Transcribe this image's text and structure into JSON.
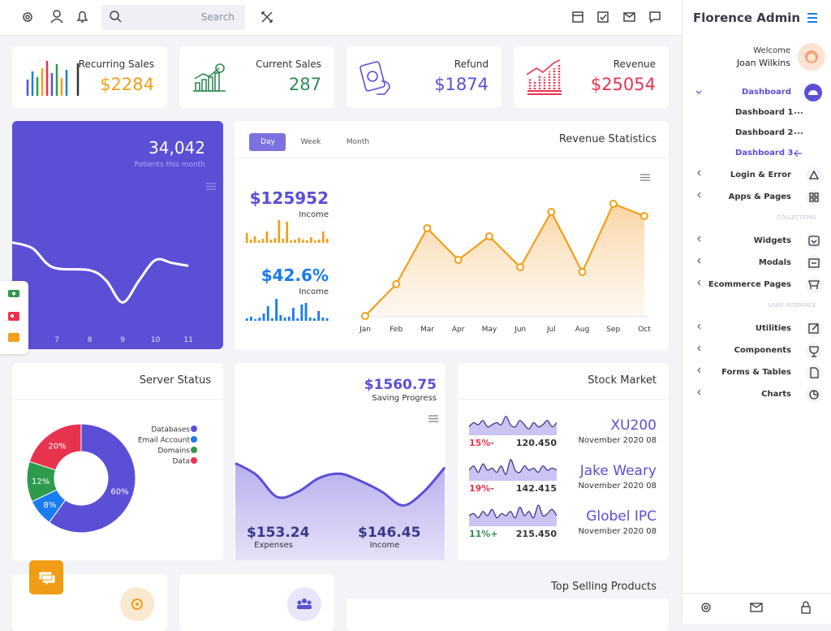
{
  "topbar": {
    "search_placeholder": "Search"
  },
  "stats": [
    {
      "label": "Recurring Sales",
      "value": "$2284",
      "color": "#f0a01a"
    },
    {
      "label": "Current Sales",
      "value": "287",
      "color": "#2e8b57"
    },
    {
      "label": "Refund",
      "value": "$1874",
      "color": "#5b4fd6"
    },
    {
      "label": "Revenue",
      "value": "$25054",
      "color": "#e8334e"
    }
  ],
  "patients": {
    "type": "line",
    "value": "34,042",
    "caption": "Patients this month",
    "color": "#ffffff",
    "x": [
      5.64,
      6.26,
      6.88,
      8,
      8.5,
      9,
      9.5,
      10,
      10.5,
      11
    ],
    "values": [
      73,
      69,
      56,
      54,
      47,
      32,
      47,
      61,
      59,
      57
    ],
    "xlim": [
      5.64,
      12.06
    ],
    "ylim": [
      0,
      100
    ],
    "xticks": [
      7,
      8,
      9,
      10,
      11
    ]
  },
  "revenue": {
    "tabs": [
      "Day",
      "Week",
      "Month"
    ],
    "title": "Revenue Statistics",
    "income_charts": [
      {
        "type": "bar",
        "value": "$125952",
        "caption": "Income",
        "color": "#f0a01a",
        "value_color": "#5b4fd6",
        "ylim": [
          0,
          30
        ],
        "values": [
          12,
          4,
          8,
          3,
          5,
          14,
          4,
          6,
          28,
          5,
          26,
          3,
          4,
          6,
          4,
          3,
          7,
          3,
          4,
          14,
          5
        ]
      },
      {
        "type": "bar",
        "value": "$42.6%",
        "caption": "Income",
        "color": "#1a7cf0",
        "value_color": "#1a7cf0",
        "ylim": [
          0,
          30
        ],
        "values": [
          3,
          5,
          2,
          4,
          9,
          18,
          3,
          27,
          7,
          4,
          5,
          16,
          3,
          20,
          22,
          4,
          3,
          12,
          4,
          3
        ]
      }
    ],
    "chart": {
      "type": "line",
      "color": "#f0a01a",
      "categories": [
        "Jan",
        "Feb",
        "Mar",
        "Apr",
        "May",
        "Jun",
        "Jul",
        "Aug",
        "Sep",
        "Oct"
      ],
      "values": [
        1,
        40,
        109,
        70,
        99,
        61,
        129,
        55,
        139,
        124
      ],
      "ylim": [
        0,
        140
      ]
    }
  },
  "server_status": {
    "type": "pie",
    "title": "Server Status",
    "categories": [
      "Databases",
      "Email Account",
      "Domains",
      "Data"
    ],
    "values": [
      60,
      8,
      12,
      20
    ],
    "value_labels": [
      "60%",
      "8%",
      "12%",
      "20%"
    ],
    "colors": [
      "#5b4fd6",
      "#1a7cf0",
      "#2e9b4c",
      "#e8334e"
    ]
  },
  "saving": {
    "type": "area",
    "value": "$1560.75",
    "caption": "Saving Progress",
    "color": "#5b4fd6",
    "ylim": [
      0,
      100
    ],
    "values": [
      92,
      81,
      60,
      65,
      78,
      82,
      75,
      65,
      52,
      65,
      88
    ],
    "expenses": {
      "value": "$153.24",
      "label": "Expenses"
    },
    "income": {
      "value": "$146.45",
      "label": "Income"
    }
  },
  "stock_market": {
    "title": "Stock Market",
    "type": "area",
    "ylim": [
      0,
      10
    ],
    "rows": [
      {
        "change": "15%-",
        "change_color": "#e8334e",
        "price": "120.450",
        "name": "XU200",
        "date": "November 2020 08",
        "values": [
          4,
          6,
          5,
          7,
          4,
          5,
          6,
          5,
          9,
          5,
          4,
          7,
          5,
          3,
          6,
          4,
          5,
          7,
          4,
          6
        ]
      },
      {
        "change": "19%-",
        "change_color": "#e8334e",
        "price": "142.415",
        "name": "Jake Weary",
        "date": "November 2020 08",
        "values": [
          5,
          7,
          4,
          8,
          5,
          6,
          4,
          7,
          3,
          10,
          5,
          4,
          7,
          5,
          6,
          4,
          7,
          5,
          6,
          5
        ]
      },
      {
        "change": "11%+",
        "change_color": "#2e8b57",
        "price": "215.450",
        "name": "Globel IPC",
        "date": "November 2020 08",
        "values": [
          5,
          6,
          4,
          7,
          5,
          8,
          4,
          6,
          5,
          7,
          4,
          9,
          5,
          7,
          4,
          10,
          5,
          6,
          8,
          5
        ]
      }
    ]
  },
  "top_selling": {
    "title": "Top Selling Products"
  },
  "sidebar": {
    "brand": "Florence Admin",
    "welcome": "Welcome",
    "user": "Joan Wilkins",
    "dashboard": "Dashboard",
    "dashboard_items": [
      "Dashboard 1",
      "Dashboard 2",
      "Dashboard 3"
    ],
    "menu": [
      "Login & Error",
      "Apps & Pages"
    ],
    "collections_heading": "COLLECTIONS",
    "collections": [
      "Widgets",
      "Modals",
      "Ecommerce Pages"
    ],
    "ui_heading": "USER INTERFACE",
    "ui": [
      "Utilities",
      "Components",
      "Forms & Tables",
      "Charts"
    ]
  }
}
